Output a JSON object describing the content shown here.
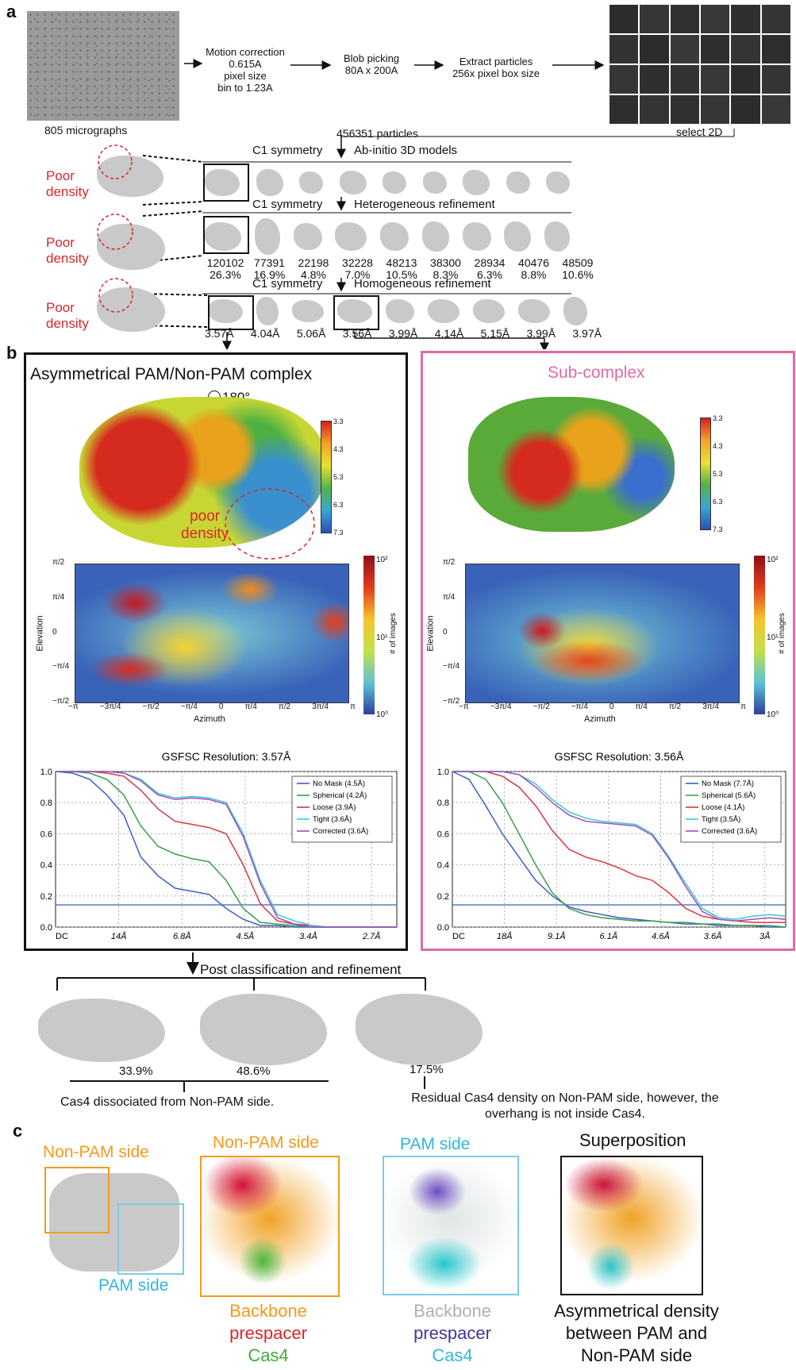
{
  "panel_a": {
    "letter": "a",
    "micrographs_label": "805 micrographs",
    "step1": [
      "Motion correction",
      "0.615A",
      "pixel size",
      "bin to 1.23A"
    ],
    "step2": [
      "Blob picking",
      "80A x 200A"
    ],
    "step3": [
      "Extract particles",
      "256x pixel box size"
    ],
    "select2d": "select 2D",
    "particles": "456351 particles",
    "row1_header": [
      "C1 symmetry",
      "Ab-initio 3D models"
    ],
    "row2_header": [
      "C1 symmetry",
      "Heterogeneous refinement"
    ],
    "row3_header": [
      "C1 symmetry",
      "Homogeneous refinement"
    ],
    "poor_density": [
      "Poor",
      "density"
    ],
    "hetero_counts": [
      "120102",
      "77391",
      "22198",
      "32228",
      "48213",
      "38300",
      "28934",
      "40476",
      "48509"
    ],
    "hetero_pcts": [
      "26.3%",
      "16.9%",
      "4.8%",
      "7.0%",
      "10.5%",
      "8.3%",
      "6.3%",
      "8.8%",
      "10.6%"
    ],
    "homo_res": [
      "3.57Å",
      "4.04Å",
      "5.06Å",
      "3.56Å",
      "3.99Å",
      "4.14Å",
      "5.15Å",
      "3.99Å",
      "3.97Å"
    ]
  },
  "panel_b": {
    "letter": "b",
    "left_title": "Asymmetrical PAM/Non-PAM complex",
    "rotation": "180°",
    "poor_density": [
      "poor",
      "density"
    ],
    "right_title": "Sub-complex",
    "colorbar_ticks": [
      "3.3",
      "4.3",
      "5.3",
      "6.3",
      "7.3"
    ],
    "elev_ylabel": "Elevation",
    "elev_xlabel": "Azimuth",
    "elev_cbar_label": "# of images",
    "elev_cbar_ticks": [
      "10²",
      "10¹",
      "10⁰"
    ],
    "elev_xticks": [
      "−π",
      "−3π/4",
      "−π/2",
      "−π/4",
      "0",
      "π/4",
      "π/2",
      "3π/4",
      "π"
    ],
    "elev_yticks": [
      "π/2",
      "π/4",
      "0",
      "−π/4",
      "−π/2"
    ],
    "post_label": "Post classification and refinement",
    "post_pcts": [
      "33.9%",
      "48.6%",
      "17.5%"
    ],
    "dissociated": "Cas4 dissociated from Non-PAM side.",
    "residual": [
      "Residual Cas4 density on Non-PAM side, however, the",
      "overhang is not inside Cas4."
    ]
  },
  "panel_c": {
    "letter": "c",
    "nonpam": "Non-PAM side",
    "pam": "PAM side",
    "superposition": "Superposition",
    "legend_left": [
      "Backbone",
      "prespacer",
      "Cas4"
    ],
    "legend_mid": [
      "Backbone",
      "prespacer",
      "Cas4"
    ],
    "legend_right": [
      "Asymmetrical density",
      "between PAM and",
      "Non-PAM side"
    ]
  },
  "colors": {
    "red": "#d8262b",
    "pink": "#e06aa6",
    "orange": "#f39a1e",
    "cyan": "#2fb8d9",
    "navy": "#3b3a9a",
    "green": "#3fae3b"
  },
  "chart_data": [
    {
      "type": "line",
      "title": "GSFSC Resolution: 3.57Å",
      "xlabel": "",
      "ylabel": "",
      "xticks": [
        "DC",
        "14Å",
        "6.8Å",
        "4.5Å",
        "3.4Å",
        "2.7Å"
      ],
      "yticks": [
        "0.0",
        "0.2",
        "0.4",
        "0.6",
        "0.8",
        "1.0"
      ],
      "ylim": [
        0,
        1
      ],
      "x": [
        0,
        0.05,
        0.1,
        0.15,
        0.2,
        0.25,
        0.3,
        0.35,
        0.4,
        0.45,
        0.5,
        0.55,
        0.6,
        0.65,
        0.7,
        0.75,
        0.8,
        0.85,
        0.9,
        0.95,
        1.0
      ],
      "series": [
        {
          "name": "No Mask (4.5Å)",
          "color": "#3b5fbf",
          "values": [
            1.0,
            0.99,
            0.95,
            0.85,
            0.72,
            0.45,
            0.33,
            0.25,
            0.23,
            0.21,
            0.12,
            0.05,
            0.01,
            0.01,
            0.0,
            0.0,
            0.0,
            0.0,
            0.0,
            0.0,
            0.0
          ]
        },
        {
          "name": "Spherical (4.2Å)",
          "color": "#3a9e4a",
          "values": [
            1.0,
            1.0,
            0.99,
            0.95,
            0.85,
            0.65,
            0.52,
            0.47,
            0.44,
            0.42,
            0.3,
            0.12,
            0.03,
            0.02,
            0.01,
            0.0,
            0.0,
            0.0,
            0.0,
            0.0,
            0.0
          ]
        },
        {
          "name": "Loose (3.9Å)",
          "color": "#d9363e",
          "values": [
            1.0,
            1.0,
            1.0,
            0.99,
            0.97,
            0.88,
            0.76,
            0.68,
            0.66,
            0.64,
            0.6,
            0.4,
            0.15,
            0.04,
            0.02,
            0.01,
            0.0,
            0.0,
            0.0,
            0.0,
            0.0
          ]
        },
        {
          "name": "Tight (3.6Å)",
          "color": "#3ec7d0",
          "values": [
            1.0,
            1.0,
            1.0,
            1.0,
            0.99,
            0.95,
            0.86,
            0.83,
            0.84,
            0.83,
            0.8,
            0.6,
            0.3,
            0.08,
            0.04,
            0.01,
            0.0,
            0.0,
            0.0,
            0.0,
            0.0
          ]
        },
        {
          "name": "Corrected (3.6Å)",
          "color": "#9a4fc0",
          "values": [
            1.0,
            1.0,
            1.0,
            1.0,
            0.99,
            0.94,
            0.85,
            0.82,
            0.83,
            0.82,
            0.79,
            0.58,
            0.28,
            0.06,
            0.02,
            0.0,
            0.0,
            0.0,
            0.0,
            0.0,
            0.0
          ]
        }
      ],
      "threshold": 0.143,
      "legend": "top-right"
    },
    {
      "type": "line",
      "title": "GSFSC Resolution: 3.56Å",
      "xlabel": "",
      "ylabel": "",
      "xticks": [
        "DC",
        "18Å",
        "9.1Å",
        "6.1Å",
        "4.6Å",
        "3.6Å",
        "3Å"
      ],
      "yticks": [
        "0.0",
        "0.2",
        "0.4",
        "0.6",
        "0.8",
        "1.0"
      ],
      "ylim": [
        0,
        1
      ],
      "x": [
        0,
        0.05,
        0.1,
        0.15,
        0.2,
        0.25,
        0.3,
        0.35,
        0.4,
        0.45,
        0.5,
        0.55,
        0.6,
        0.65,
        0.7,
        0.75,
        0.8,
        0.85,
        0.9,
        0.95,
        1.0
      ],
      "series": [
        {
          "name": "No Mask (7.7Å)",
          "color": "#3b5fbf",
          "values": [
            1.0,
            0.95,
            0.78,
            0.6,
            0.45,
            0.3,
            0.2,
            0.13,
            0.1,
            0.08,
            0.06,
            0.05,
            0.04,
            0.03,
            0.02,
            0.02,
            0.01,
            0.01,
            0.01,
            0.0,
            0.0
          ]
        },
        {
          "name": "Spherical (5.6Å)",
          "color": "#3a9e4a",
          "values": [
            1.0,
            1.0,
            0.95,
            0.8,
            0.6,
            0.4,
            0.22,
            0.12,
            0.08,
            0.06,
            0.05,
            0.04,
            0.04,
            0.03,
            0.03,
            0.02,
            0.02,
            0.01,
            0.01,
            0.01,
            0.0
          ]
        },
        {
          "name": "Loose (4.1Å)",
          "color": "#d9363e",
          "values": [
            1.0,
            1.0,
            1.0,
            0.97,
            0.9,
            0.78,
            0.62,
            0.5,
            0.45,
            0.42,
            0.38,
            0.33,
            0.3,
            0.22,
            0.12,
            0.07,
            0.05,
            0.04,
            0.03,
            0.03,
            0.03
          ]
        },
        {
          "name": "Tight (3.5Å)",
          "color": "#3ec7d0",
          "values": [
            1.0,
            1.0,
            1.0,
            1.0,
            0.98,
            0.92,
            0.82,
            0.74,
            0.7,
            0.68,
            0.67,
            0.66,
            0.6,
            0.45,
            0.28,
            0.12,
            0.06,
            0.05,
            0.07,
            0.08,
            0.07
          ]
        },
        {
          "name": "Corrected (3.6Å)",
          "color": "#9a4fc0",
          "values": [
            1.0,
            1.0,
            1.0,
            1.0,
            0.98,
            0.9,
            0.8,
            0.72,
            0.68,
            0.67,
            0.66,
            0.65,
            0.59,
            0.44,
            0.26,
            0.1,
            0.05,
            0.04,
            0.05,
            0.06,
            0.05
          ]
        }
      ],
      "threshold": 0.143,
      "legend": "top-right"
    }
  ]
}
